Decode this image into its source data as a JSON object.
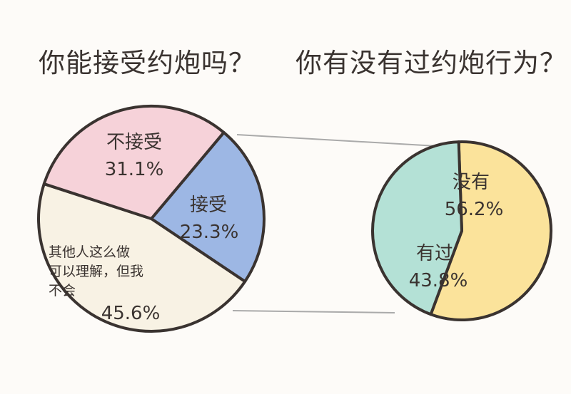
{
  "titles": {
    "left": "你能接受约炮吗？",
    "right": "你有没有过约炮行为？"
  },
  "chart_data": [
    {
      "type": "pie",
      "title": "你能接受约炮吗？",
      "slices": [
        {
          "label": "接受",
          "value": 23.3,
          "display": "23.3%",
          "color": "#9db7e4"
        },
        {
          "label": "其他人这么做可以理解，但我不会",
          "value": 45.6,
          "display": "45.6%",
          "color": "#f8f2e4"
        },
        {
          "label": "不接受",
          "value": 31.1,
          "display": "31.1%",
          "color": "#f6d2d9"
        }
      ]
    },
    {
      "type": "pie",
      "title": "你有没有过约炮行为？",
      "slices": [
        {
          "label": "没有",
          "value": 56.2,
          "display": "56.2%",
          "color": "#fbe39b"
        },
        {
          "label": "有过",
          "value": 43.8,
          "display": "43.8%",
          "color": "#b4e1d6"
        }
      ]
    }
  ],
  "labels": {
    "accept": "接受",
    "other_line1": "其他人这么做",
    "other_line2": "可以理解，但我",
    "other_line3": "不会",
    "no": "没有",
    "yes": "有过"
  }
}
